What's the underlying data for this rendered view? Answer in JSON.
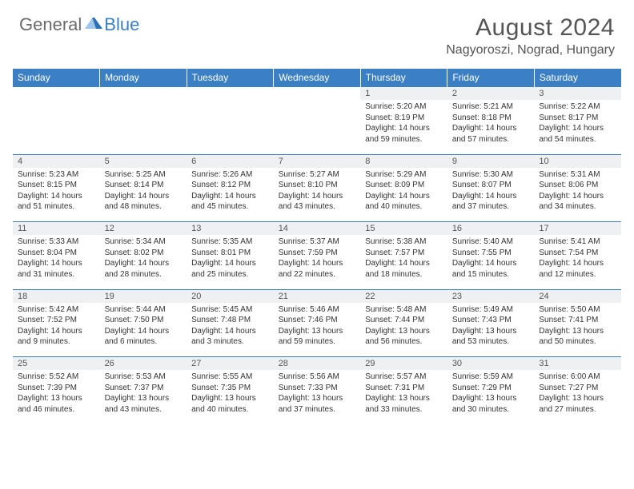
{
  "logo": {
    "part1": "General",
    "part2": "Blue"
  },
  "title": "August 2024",
  "location": "Nagyoroszi, Nograd, Hungary",
  "header_bg": "#3b7fc4",
  "daynum_bg": "#eef0f2",
  "days": [
    "Sunday",
    "Monday",
    "Tuesday",
    "Wednesday",
    "Thursday",
    "Friday",
    "Saturday"
  ],
  "weeks": [
    [
      null,
      null,
      null,
      null,
      {
        "n": "1",
        "sr": "5:20 AM",
        "ss": "8:19 PM",
        "dl": "14 hours and 59 minutes."
      },
      {
        "n": "2",
        "sr": "5:21 AM",
        "ss": "8:18 PM",
        "dl": "14 hours and 57 minutes."
      },
      {
        "n": "3",
        "sr": "5:22 AM",
        "ss": "8:17 PM",
        "dl": "14 hours and 54 minutes."
      }
    ],
    [
      {
        "n": "4",
        "sr": "5:23 AM",
        "ss": "8:15 PM",
        "dl": "14 hours and 51 minutes."
      },
      {
        "n": "5",
        "sr": "5:25 AM",
        "ss": "8:14 PM",
        "dl": "14 hours and 48 minutes."
      },
      {
        "n": "6",
        "sr": "5:26 AM",
        "ss": "8:12 PM",
        "dl": "14 hours and 45 minutes."
      },
      {
        "n": "7",
        "sr": "5:27 AM",
        "ss": "8:10 PM",
        "dl": "14 hours and 43 minutes."
      },
      {
        "n": "8",
        "sr": "5:29 AM",
        "ss": "8:09 PM",
        "dl": "14 hours and 40 minutes."
      },
      {
        "n": "9",
        "sr": "5:30 AM",
        "ss": "8:07 PM",
        "dl": "14 hours and 37 minutes."
      },
      {
        "n": "10",
        "sr": "5:31 AM",
        "ss": "8:06 PM",
        "dl": "14 hours and 34 minutes."
      }
    ],
    [
      {
        "n": "11",
        "sr": "5:33 AM",
        "ss": "8:04 PM",
        "dl": "14 hours and 31 minutes."
      },
      {
        "n": "12",
        "sr": "5:34 AM",
        "ss": "8:02 PM",
        "dl": "14 hours and 28 minutes."
      },
      {
        "n": "13",
        "sr": "5:35 AM",
        "ss": "8:01 PM",
        "dl": "14 hours and 25 minutes."
      },
      {
        "n": "14",
        "sr": "5:37 AM",
        "ss": "7:59 PM",
        "dl": "14 hours and 22 minutes."
      },
      {
        "n": "15",
        "sr": "5:38 AM",
        "ss": "7:57 PM",
        "dl": "14 hours and 18 minutes."
      },
      {
        "n": "16",
        "sr": "5:40 AM",
        "ss": "7:55 PM",
        "dl": "14 hours and 15 minutes."
      },
      {
        "n": "17",
        "sr": "5:41 AM",
        "ss": "7:54 PM",
        "dl": "14 hours and 12 minutes."
      }
    ],
    [
      {
        "n": "18",
        "sr": "5:42 AM",
        "ss": "7:52 PM",
        "dl": "14 hours and 9 minutes."
      },
      {
        "n": "19",
        "sr": "5:44 AM",
        "ss": "7:50 PM",
        "dl": "14 hours and 6 minutes."
      },
      {
        "n": "20",
        "sr": "5:45 AM",
        "ss": "7:48 PM",
        "dl": "14 hours and 3 minutes."
      },
      {
        "n": "21",
        "sr": "5:46 AM",
        "ss": "7:46 PM",
        "dl": "13 hours and 59 minutes."
      },
      {
        "n": "22",
        "sr": "5:48 AM",
        "ss": "7:44 PM",
        "dl": "13 hours and 56 minutes."
      },
      {
        "n": "23",
        "sr": "5:49 AM",
        "ss": "7:43 PM",
        "dl": "13 hours and 53 minutes."
      },
      {
        "n": "24",
        "sr": "5:50 AM",
        "ss": "7:41 PM",
        "dl": "13 hours and 50 minutes."
      }
    ],
    [
      {
        "n": "25",
        "sr": "5:52 AM",
        "ss": "7:39 PM",
        "dl": "13 hours and 46 minutes."
      },
      {
        "n": "26",
        "sr": "5:53 AM",
        "ss": "7:37 PM",
        "dl": "13 hours and 43 minutes."
      },
      {
        "n": "27",
        "sr": "5:55 AM",
        "ss": "7:35 PM",
        "dl": "13 hours and 40 minutes."
      },
      {
        "n": "28",
        "sr": "5:56 AM",
        "ss": "7:33 PM",
        "dl": "13 hours and 37 minutes."
      },
      {
        "n": "29",
        "sr": "5:57 AM",
        "ss": "7:31 PM",
        "dl": "13 hours and 33 minutes."
      },
      {
        "n": "30",
        "sr": "5:59 AM",
        "ss": "7:29 PM",
        "dl": "13 hours and 30 minutes."
      },
      {
        "n": "31",
        "sr": "6:00 AM",
        "ss": "7:27 PM",
        "dl": "13 hours and 27 minutes."
      }
    ]
  ],
  "labels": {
    "sunrise": "Sunrise:",
    "sunset": "Sunset:",
    "daylight": "Daylight:"
  }
}
